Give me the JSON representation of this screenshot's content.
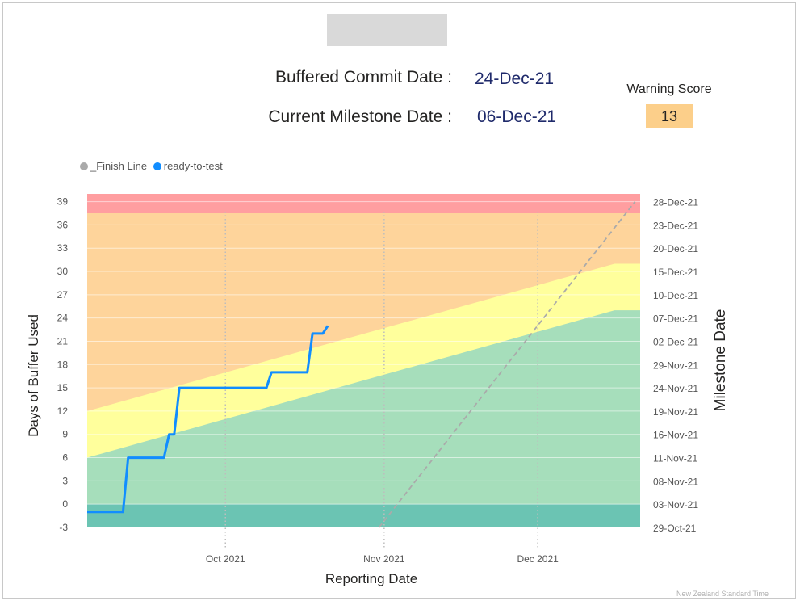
{
  "header": {
    "buffered_label": "Buffered Commit Date :",
    "buffered_value": "24-Dec-21",
    "milestone_label": "Current Milestone Date :",
    "milestone_value": "06-Dec-21",
    "warning_label": "Warning Score",
    "warning_value": "13"
  },
  "footer_note": "New Zealand Standard Time",
  "chart_data": {
    "type": "line",
    "xlabel": "Reporting Date",
    "ylabel": "Days of Buffer Used",
    "y2label": "Milestone Date",
    "x_ticks": [
      {
        "label": "Oct 2021",
        "date": "2021-10-01"
      },
      {
        "label": "Nov 2021",
        "date": "2021-11-01"
      },
      {
        "label": "Dec 2021",
        "date": "2021-12-01"
      }
    ],
    "xlim": [
      "2021-09-04",
      "2021-12-21"
    ],
    "ylim": [
      -3,
      40
    ],
    "y_ticks": [
      -3,
      0,
      3,
      6,
      9,
      12,
      15,
      18,
      21,
      24,
      27,
      30,
      33,
      36,
      39
    ],
    "y2_ticks": [
      "29-Oct-21",
      "03-Nov-21",
      "08-Nov-21",
      "11-Nov-21",
      "16-Nov-21",
      "19-Nov-21",
      "24-Nov-21",
      "29-Nov-21",
      "02-Dec-21",
      "07-Dec-21",
      "10-Dec-21",
      "15-Dec-21",
      "20-Dec-21",
      "23-Dec-21",
      "28-Dec-21"
    ],
    "zones": {
      "red_bottom": 37.5,
      "orange_bottom_start": 12,
      "orange_bottom_end": 31,
      "yellow_bottom_start": 6,
      "yellow_bottom_end": 25,
      "teal_top": 0,
      "slope_end_date": "2021-12-16",
      "colors": {
        "red": "#ff9ea0",
        "orange": "#fed49b",
        "yellow": "#ffff9c",
        "green": "#a6debb",
        "teal": "#6bc4b3"
      }
    },
    "legend_position": "top-left",
    "series": [
      {
        "name": "_Finish Line",
        "color": "#aaaaaa",
        "style": "dashed",
        "points": [
          {
            "x": "2021-10-31",
            "y": -3
          },
          {
            "x": "2021-12-20",
            "y": 39
          }
        ]
      },
      {
        "name": "ready-to-test",
        "color": "#118dff",
        "style": "solid",
        "points": [
          {
            "x": "2021-09-04",
            "y": -1
          },
          {
            "x": "2021-09-11",
            "y": -1
          },
          {
            "x": "2021-09-12",
            "y": 6
          },
          {
            "x": "2021-09-19",
            "y": 6
          },
          {
            "x": "2021-09-20",
            "y": 9
          },
          {
            "x": "2021-09-21",
            "y": 9
          },
          {
            "x": "2021-09-22",
            "y": 15
          },
          {
            "x": "2021-10-09",
            "y": 15
          },
          {
            "x": "2021-10-10",
            "y": 17
          },
          {
            "x": "2021-10-17",
            "y": 17
          },
          {
            "x": "2021-10-18",
            "y": 22
          },
          {
            "x": "2021-10-20",
            "y": 22
          },
          {
            "x": "2021-10-21",
            "y": 23
          }
        ]
      }
    ]
  }
}
